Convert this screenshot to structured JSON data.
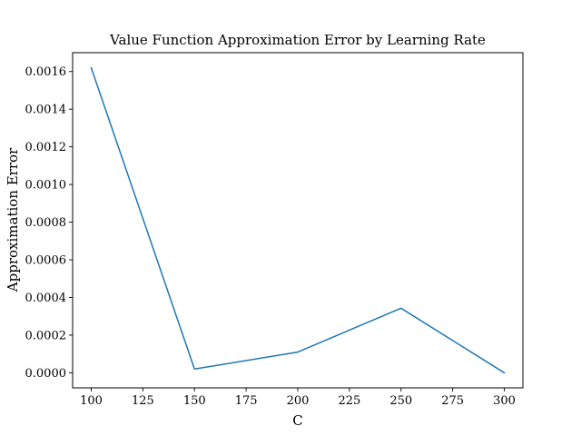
{
  "chart_data": {
    "type": "line",
    "title": "Value Function Approximation Error by Learning Rate",
    "xlabel": "C",
    "ylabel": "Approximation Error",
    "x": [
      100,
      150,
      200,
      250,
      300
    ],
    "series": [
      {
        "values": [
          0.00162,
          2e-05,
          0.00011,
          0.000343,
          0.0
        ],
        "color": "#1f77b4"
      }
    ],
    "xlim": [
      91,
      309
    ],
    "ylim": [
      -8e-05,
      0.0017
    ],
    "xticks": [
      100,
      125,
      150,
      175,
      200,
      225,
      250,
      275,
      300
    ],
    "xtick_labels": [
      "100",
      "125",
      "150",
      "175",
      "200",
      "225",
      "250",
      "275",
      "300"
    ],
    "yticks": [
      0,
      0.0002,
      0.0004,
      0.0006,
      0.0008,
      0.001,
      0.0012,
      0.0014,
      0.0016
    ],
    "ytick_labels": [
      "0.0000",
      "0.0002",
      "0.0004",
      "0.0006",
      "0.0008",
      "0.0010",
      "0.0012",
      "0.0014",
      "0.0016"
    ],
    "grid": false,
    "legend": false
  }
}
